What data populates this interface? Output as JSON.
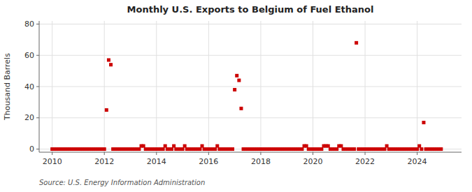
{
  "chart_data": {
    "type": "scatter",
    "title": "Monthly U.S. Exports to Belgium of Fuel Ethanol",
    "ylabel": "Thousand Barrels",
    "source": "Source: U.S. Energy Information Administration",
    "color": "#cc0000",
    "marker": "square",
    "grid": true,
    "xlim": [
      2009.5,
      2025.7
    ],
    "ylim": [
      -2,
      82
    ],
    "xticks": [
      2010,
      2012,
      2014,
      2016,
      2018,
      2020,
      2022,
      2024
    ],
    "yticks": [
      0,
      20,
      40,
      60,
      80
    ],
    "x": [
      2010.0,
      2010.083,
      2010.167,
      2010.25,
      2010.333,
      2010.417,
      2010.5,
      2010.583,
      2010.667,
      2010.75,
      2010.833,
      2010.917,
      2011.0,
      2011.083,
      2011.167,
      2011.25,
      2011.333,
      2011.417,
      2011.5,
      2011.583,
      2011.667,
      2011.75,
      2011.833,
      2011.917,
      2012.0,
      2012.083,
      2012.167,
      2012.25,
      2012.333,
      2012.417,
      2012.5,
      2012.583,
      2012.667,
      2012.75,
      2012.833,
      2012.917,
      2013.0,
      2013.083,
      2013.167,
      2013.25,
      2013.333,
      2013.417,
      2013.5,
      2013.583,
      2013.667,
      2013.75,
      2013.833,
      2013.917,
      2014.0,
      2014.083,
      2014.167,
      2014.25,
      2014.333,
      2014.417,
      2014.5,
      2014.583,
      2014.667,
      2014.75,
      2014.833,
      2014.917,
      2015.0,
      2015.083,
      2015.167,
      2015.25,
      2015.333,
      2015.417,
      2015.5,
      2015.583,
      2015.667,
      2015.75,
      2015.833,
      2015.917,
      2016.0,
      2016.083,
      2016.167,
      2016.25,
      2016.333,
      2016.417,
      2016.5,
      2016.583,
      2016.667,
      2016.75,
      2016.833,
      2016.917,
      2017.0,
      2017.083,
      2017.167,
      2017.25,
      2017.333,
      2017.417,
      2017.5,
      2017.583,
      2017.667,
      2017.75,
      2017.833,
      2017.917,
      2018.0,
      2018.083,
      2018.167,
      2018.25,
      2018.333,
      2018.417,
      2018.5,
      2018.583,
      2018.667,
      2018.75,
      2018.833,
      2018.917,
      2019.0,
      2019.083,
      2019.167,
      2019.25,
      2019.333,
      2019.417,
      2019.5,
      2019.583,
      2019.667,
      2019.75,
      2019.833,
      2019.917,
      2020.0,
      2020.083,
      2020.167,
      2020.25,
      2020.333,
      2020.417,
      2020.5,
      2020.583,
      2020.667,
      2020.75,
      2020.833,
      2020.917,
      2021.0,
      2021.083,
      2021.167,
      2021.25,
      2021.333,
      2021.417,
      2021.5,
      2021.583,
      2021.667,
      2021.75,
      2021.833,
      2021.917,
      2022.0,
      2022.083,
      2022.167,
      2022.25,
      2022.333,
      2022.417,
      2022.5,
      2022.583,
      2022.667,
      2022.75,
      2022.833,
      2022.917,
      2023.0,
      2023.083,
      2023.167,
      2023.25,
      2023.333,
      2023.417,
      2023.5,
      2023.583,
      2023.667,
      2023.75,
      2023.833,
      2023.917,
      2024.0,
      2024.083,
      2024.167,
      2024.25,
      2024.333,
      2024.417,
      2024.5,
      2024.583,
      2024.667,
      2024.75,
      2024.833,
      2024.917
    ],
    "values": [
      0,
      0,
      0,
      0,
      0,
      0,
      0,
      0,
      0,
      0,
      0,
      0,
      0,
      0,
      0,
      0,
      0,
      0,
      0,
      0,
      0,
      0,
      0,
      0,
      0,
      25,
      57,
      54,
      0,
      0,
      0,
      0,
      0,
      0,
      0,
      0,
      0,
      0,
      0,
      0,
      0,
      2,
      2,
      0,
      0,
      0,
      0,
      0,
      0,
      0,
      0,
      0,
      2,
      0,
      0,
      0,
      2,
      0,
      0,
      0,
      0,
      2,
      0,
      0,
      0,
      0,
      0,
      0,
      0,
      2,
      0,
      0,
      0,
      0,
      0,
      0,
      2,
      0,
      0,
      0,
      0,
      0,
      0,
      0,
      38,
      47,
      44,
      26,
      0,
      0,
      0,
      0,
      0,
      0,
      0,
      0,
      0,
      0,
      0,
      0,
      0,
      0,
      0,
      0,
      0,
      0,
      0,
      0,
      0,
      0,
      0,
      0,
      0,
      0,
      0,
      0,
      2,
      2,
      0,
      0,
      0,
      0,
      0,
      0,
      0,
      2,
      2,
      2,
      0,
      0,
      0,
      0,
      2,
      2,
      0,
      0,
      0,
      0,
      0,
      0,
      68,
      0,
      0,
      0,
      0,
      0,
      0,
      0,
      0,
      0,
      0,
      0,
      0,
      0,
      2,
      0,
      0,
      0,
      0,
      0,
      0,
      0,
      0,
      0,
      0,
      0,
      0,
      0,
      0,
      2,
      0,
      17,
      0,
      0,
      0,
      0,
      0,
      0,
      0,
      0
    ]
  }
}
